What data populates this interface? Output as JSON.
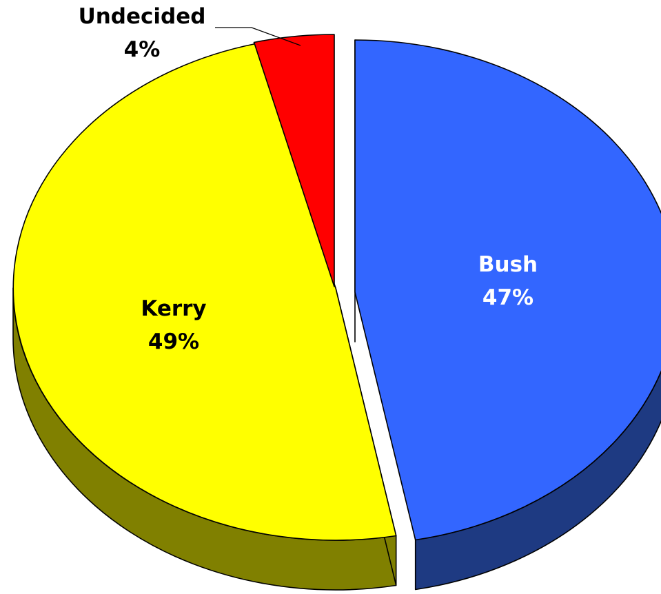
{
  "chart_data": {
    "type": "pie",
    "style": "3d-exploded",
    "title": "",
    "slices": [
      {
        "label": "Bush",
        "percent_label": "47%",
        "value": 47,
        "color": "#3366FF",
        "side_color": "#1E3A82",
        "label_color": "#FFFFFF"
      },
      {
        "label": "Kerry",
        "percent_label": "49%",
        "value": 49,
        "color": "#FFFF00",
        "side_color": "#808000",
        "label_color": "#000000"
      },
      {
        "label": "Undecided",
        "percent_label": "4%",
        "value": 4,
        "color": "#FF0000",
        "side_color": "#800000",
        "label_color": "#000000"
      }
    ]
  }
}
